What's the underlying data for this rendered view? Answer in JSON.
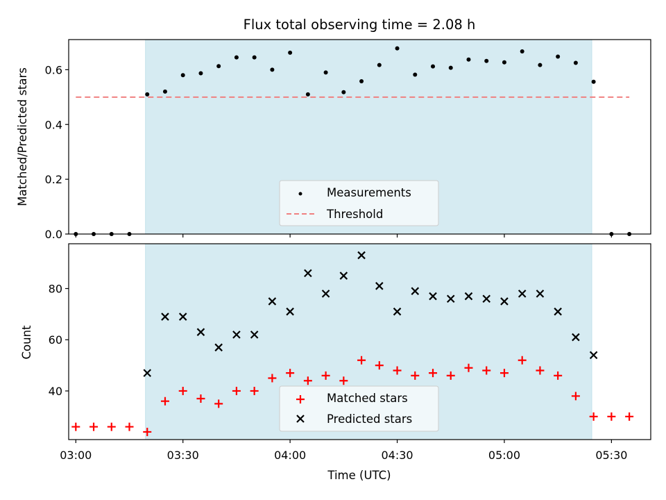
{
  "chart_data": [
    {
      "type": "scatter",
      "title": "Flux total observing time = 2.08 h",
      "ylabel": "Matched/Predicted stars",
      "ylim": [
        0,
        0.71
      ],
      "xlim_minutes": [
        "02:58",
        "05:41"
      ],
      "yticks": [
        0.0,
        0.2,
        0.4,
        0.6
      ],
      "ytick_labels": [
        "0.0",
        "0.2",
        "0.4",
        "0.6"
      ],
      "grid": false,
      "legend_position": "lower-center",
      "shaded_interval": [
        "03:19:30",
        "05:24:30"
      ],
      "shade_color": "#add8e6",
      "series": [
        {
          "name": "Measurements",
          "marker": "dot",
          "color": "#000000",
          "x": [
            "03:00",
            "03:05",
            "03:10",
            "03:15",
            "03:20",
            "03:25",
            "03:30",
            "03:35",
            "03:40",
            "03:45",
            "03:50",
            "03:55",
            "04:00",
            "04:05",
            "04:10",
            "04:15",
            "04:20",
            "04:25",
            "04:30",
            "04:35",
            "04:40",
            "04:45",
            "04:50",
            "04:55",
            "05:00",
            "05:05",
            "05:10",
            "05:15",
            "05:20",
            "05:25",
            "05:30",
            "05:35"
          ],
          "y": [
            0.0,
            0.0,
            0.0,
            0.0,
            0.51,
            0.52,
            0.58,
            0.587,
            0.613,
            0.645,
            0.645,
            0.6,
            0.662,
            0.51,
            0.59,
            0.518,
            0.558,
            0.617,
            0.678,
            0.582,
            0.612,
            0.607,
            0.637,
            0.632,
            0.627,
            0.667,
            0.617,
            0.648,
            0.625,
            0.556,
            0.0,
            0.0
          ]
        },
        {
          "name": "Threshold",
          "marker": "dashed-line",
          "color": "#f08080",
          "x": [
            "03:00",
            "05:35"
          ],
          "y": [
            0.5,
            0.5
          ]
        }
      ]
    },
    {
      "type": "scatter",
      "title": "",
      "xlabel": "Time (UTC)",
      "ylabel": "Count",
      "ylim": [
        21,
        97.5
      ],
      "yticks": [
        40,
        60,
        80
      ],
      "ytick_labels": [
        "40",
        "60",
        "80"
      ],
      "xticks": [
        "03:00",
        "03:30",
        "04:00",
        "04:30",
        "05:00",
        "05:30"
      ],
      "xtick_labels": [
        "03:00",
        "03:30",
        "04:00",
        "04:30",
        "05:00",
        "05:30"
      ],
      "grid": false,
      "legend_position": "lower-center",
      "series": [
        {
          "name": "Matched stars",
          "marker": "plus",
          "color": "#ff0000",
          "x": [
            "03:00",
            "03:05",
            "03:10",
            "03:15",
            "03:20",
            "03:25",
            "03:30",
            "03:35",
            "03:40",
            "03:45",
            "03:50",
            "03:55",
            "04:00",
            "04:05",
            "04:10",
            "04:15",
            "04:20",
            "04:25",
            "04:30",
            "04:35",
            "04:40",
            "04:45",
            "04:50",
            "04:55",
            "05:00",
            "05:05",
            "05:10",
            "05:15",
            "05:20",
            "05:25",
            "05:30",
            "05:35"
          ],
          "y": [
            26,
            26,
            26,
            26,
            24,
            36,
            40,
            37,
            35,
            40,
            40,
            45,
            47,
            44,
            46,
            44,
            52,
            50,
            48,
            46,
            47,
            46,
            49,
            48,
            47,
            52,
            48,
            46,
            38,
            30,
            30,
            30
          ]
        },
        {
          "name": "Predicted stars",
          "marker": "x",
          "color": "#000000",
          "x": [
            "03:20",
            "03:25",
            "03:30",
            "03:35",
            "03:40",
            "03:45",
            "03:50",
            "03:55",
            "04:00",
            "04:05",
            "04:10",
            "04:15",
            "04:20",
            "04:25",
            "04:30",
            "04:35",
            "04:40",
            "04:45",
            "04:50",
            "04:55",
            "05:00",
            "05:05",
            "05:10",
            "05:15",
            "05:20",
            "05:25"
          ],
          "y": [
            47,
            69,
            69,
            63,
            57,
            62,
            62,
            75,
            71,
            86,
            78,
            85,
            93,
            81,
            71,
            79,
            77,
            76,
            77,
            76,
            75,
            78,
            78,
            71,
            61,
            54
          ]
        }
      ]
    }
  ]
}
